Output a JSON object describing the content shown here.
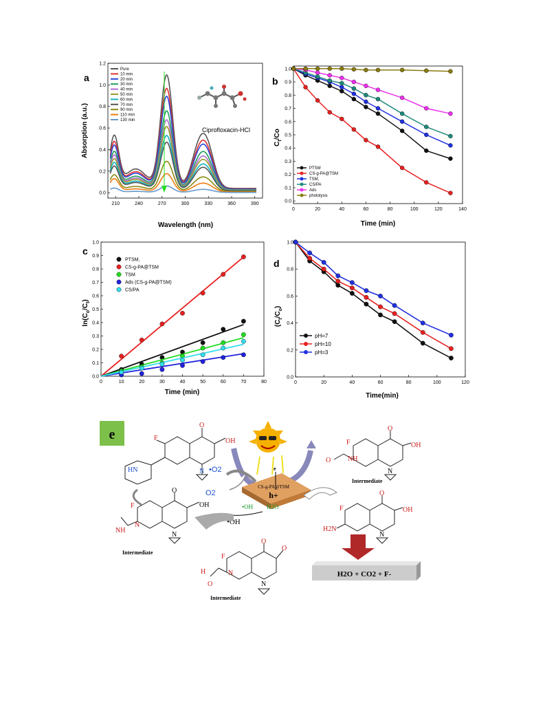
{
  "chart_data": [
    {
      "panel": "a",
      "type": "line",
      "xlabel": "Wavelength (nm)",
      "ylabel": "Absorption (a.u.)",
      "xlim": [
        200,
        400
      ],
      "ylim": [
        -0.05,
        1.2
      ],
      "xticks": [
        210,
        240,
        270,
        300,
        330,
        360,
        390
      ],
      "yticks": [
        0.0,
        0.2,
        0.4,
        0.6,
        0.8,
        1.0,
        1.2
      ],
      "annotation": "Ciprofloxacin-HCl",
      "legend_position": "top-left",
      "series": [
        {
          "name": "Pure",
          "color": "#555555",
          "peak": 1.05,
          "shoulder": 0.47
        },
        {
          "name": "10 min",
          "color": "#e03030",
          "peak": 0.93,
          "shoulder": 0.42
        },
        {
          "name": "20 min",
          "color": "#2a44d8",
          "peak": 0.86,
          "shoulder": 0.39
        },
        {
          "name": "30 min",
          "color": "#1e9c5a",
          "peak": 0.73,
          "shoulder": 0.34
        },
        {
          "name": "40 min",
          "color": "#b06ad0",
          "peak": 0.65,
          "shoulder": 0.31
        },
        {
          "name": "50 min",
          "color": "#9a9a28",
          "peak": 0.59,
          "shoulder": 0.28
        },
        {
          "name": "60 min",
          "color": "#10b0c0",
          "peak": 0.51,
          "shoulder": 0.25
        },
        {
          "name": "70 min",
          "color": "#555555",
          "peak": 0.45,
          "shoulder": 0.22
        },
        {
          "name": "90 min",
          "color": "#8a8a10",
          "peak": 0.28,
          "shoulder": 0.15
        },
        {
          "name": "110 min",
          "color": "#f07a10",
          "peak": 0.17,
          "shoulder": 0.12
        },
        {
          "name": "130 min",
          "color": "#6699cc",
          "peak": 0.06,
          "shoulder": 0.04
        }
      ]
    },
    {
      "panel": "b",
      "type": "line",
      "xlabel": "Time (min)",
      "ylabel": "Ct/Co",
      "xlim": [
        0,
        140
      ],
      "ylim": [
        -0.02,
        1.02
      ],
      "xticks": [
        0,
        20,
        40,
        60,
        80,
        100,
        120,
        140
      ],
      "yticks": [
        0.0,
        0.1,
        0.2,
        0.3,
        0.4,
        0.5,
        0.6,
        0.7,
        0.8,
        0.9,
        1.0
      ],
      "x": [
        0,
        10,
        20,
        30,
        40,
        50,
        60,
        70,
        90,
        110,
        130
      ],
      "legend_position": "bottom-left",
      "series": [
        {
          "name": "PTSM",
          "color": "#111111",
          "values": [
            1.0,
            0.95,
            0.91,
            0.87,
            0.83,
            0.77,
            0.71,
            0.66,
            0.53,
            0.38,
            0.32
          ]
        },
        {
          "name": "CS-g-PA@TSM",
          "color": "#e82020",
          "values": [
            1.0,
            0.86,
            0.76,
            0.67,
            0.62,
            0.54,
            0.46,
            0.41,
            0.25,
            0.14,
            0.06
          ]
        },
        {
          "name": "TSM,",
          "color": "#2030e0",
          "values": [
            1.0,
            0.96,
            0.93,
            0.9,
            0.86,
            0.81,
            0.75,
            0.7,
            0.6,
            0.5,
            0.42
          ]
        },
        {
          "name": "CS/PA",
          "color": "#1f8a7a",
          "values": [
            1.0,
            0.97,
            0.94,
            0.91,
            0.89,
            0.85,
            0.8,
            0.77,
            0.66,
            0.56,
            0.49
          ]
        },
        {
          "name": "Ads",
          "color": "#ee30ee",
          "values": [
            1.0,
            0.99,
            0.97,
            0.95,
            0.93,
            0.9,
            0.87,
            0.84,
            0.78,
            0.7,
            0.66
          ]
        },
        {
          "name": "photolysis",
          "color": "#8a7a10",
          "values": [
            1.0,
            1.0,
            1.0,
            1.0,
            1.0,
            0.995,
            0.99,
            0.99,
            0.99,
            0.985,
            0.98
          ]
        }
      ]
    },
    {
      "panel": "c",
      "type": "scatter",
      "xlabel": "Time (min)",
      "ylabel": "ln(Co/Ct)",
      "xlim": [
        0,
        80
      ],
      "ylim": [
        0,
        1.0
      ],
      "xticks": [
        0,
        10,
        20,
        30,
        40,
        50,
        60,
        70,
        80
      ],
      "yticks": [
        0.0,
        0.1,
        0.2,
        0.3,
        0.4,
        0.5,
        0.6,
        0.7,
        0.8,
        0.9,
        1.0
      ],
      "x": [
        0,
        10,
        20,
        30,
        40,
        50,
        60,
        70
      ],
      "legend_position": "top-left",
      "series": [
        {
          "name": "PTSM,",
          "color": "#111111",
          "values": [
            0.0,
            0.05,
            0.09,
            0.14,
            0.18,
            0.25,
            0.35,
            0.41
          ],
          "fit_slope": 0.0055
        },
        {
          "name": "CS-g-PA@TSM",
          "color": "#e82020",
          "values": [
            0.0,
            0.15,
            0.27,
            0.39,
            0.47,
            0.62,
            0.76,
            0.89
          ],
          "fit_slope": 0.0127
        },
        {
          "name": "TSM",
          "color": "#22dd22",
          "values": [
            0.0,
            0.04,
            0.07,
            0.1,
            0.15,
            0.21,
            0.25,
            0.31
          ],
          "fit_slope": 0.0041
        },
        {
          "name": "Ads (CS-g-PA@TSM)",
          "color": "#2222dd",
          "values": [
            0.0,
            0.01,
            0.02,
            0.05,
            0.08,
            0.11,
            0.14,
            0.16
          ],
          "fit_slope": 0.0024
        },
        {
          "name": "CS/PA",
          "color": "#33ddee",
          "values": [
            0.0,
            0.03,
            0.06,
            0.09,
            0.12,
            0.16,
            0.21,
            0.26
          ],
          "fit_slope": 0.0034
        }
      ]
    },
    {
      "panel": "d",
      "type": "line",
      "xlabel": "Time(min)",
      "ylabel": "(Ct/Co)",
      "xlim": [
        0,
        120
      ],
      "ylim": [
        0,
        1.0
      ],
      "xticks": [
        0,
        20,
        40,
        60,
        80,
        100,
        120
      ],
      "yticks": [
        0.0,
        0.2,
        0.4,
        0.6,
        0.8,
        1.0
      ],
      "x": [
        0,
        10,
        20,
        30,
        40,
        50,
        60,
        70,
        90,
        110
      ],
      "legend_position": "bottom-left",
      "series": [
        {
          "name": "pH=7",
          "color": "#111111",
          "values": [
            1.0,
            0.86,
            0.78,
            0.68,
            0.62,
            0.54,
            0.46,
            0.41,
            0.25,
            0.14
          ]
        },
        {
          "name": "pH=10",
          "color": "#e82020",
          "values": [
            1.0,
            0.88,
            0.8,
            0.71,
            0.66,
            0.59,
            0.52,
            0.47,
            0.33,
            0.21
          ]
        },
        {
          "name": "pH=3",
          "color": "#2030e0",
          "values": [
            1.0,
            0.92,
            0.85,
            0.75,
            0.7,
            0.64,
            0.6,
            0.53,
            0.4,
            0.31
          ]
        }
      ]
    }
  ],
  "panels": {
    "a": {
      "letter": "a",
      "xlabel": "Wavelength (nm)",
      "ylabel": "Absorption (a.u.)",
      "annotation": "Ciprofloxacin-HCl"
    },
    "b": {
      "letter": "b",
      "xlabel": "Time (min)",
      "ylabel_main": "C",
      "ylabel_sub1": "t",
      "ylabel_slash": "/Co"
    },
    "c": {
      "letter": "c",
      "xlabel": "Time (min)",
      "ylabel_pre": "ln(C",
      "ylabel_sub1": "o",
      "ylabel_mid": "/C",
      "ylabel_sub2": "t",
      "ylabel_post": ")"
    },
    "d": {
      "letter": "d",
      "xlabel": "Time(min)",
      "ylabel_pre": "(C",
      "ylabel_sub1": "t",
      "ylabel_mid": "/C",
      "ylabel_sub2": "o",
      "ylabel_post": ")"
    },
    "e": {
      "letter": "e",
      "catalyst_label": "CS-g-PA@TSM",
      "o2_label": "O2",
      "superoxide_label": "•O2",
      "electron_label": "e",
      "hole_label": "h+",
      "oh_label": "•OH",
      "h2o_label": "H2O",
      "oh_radical_label": "•OH",
      "intermediate_label": "Intermediate",
      "products_label": "H2O + CO2 + F-",
      "atoms": {
        "F": "F",
        "O": "O",
        "OH": "OH",
        "N": "N",
        "HN": "HN",
        "H2N": "H2N",
        "NH": "NH",
        "H": "H"
      }
    }
  }
}
